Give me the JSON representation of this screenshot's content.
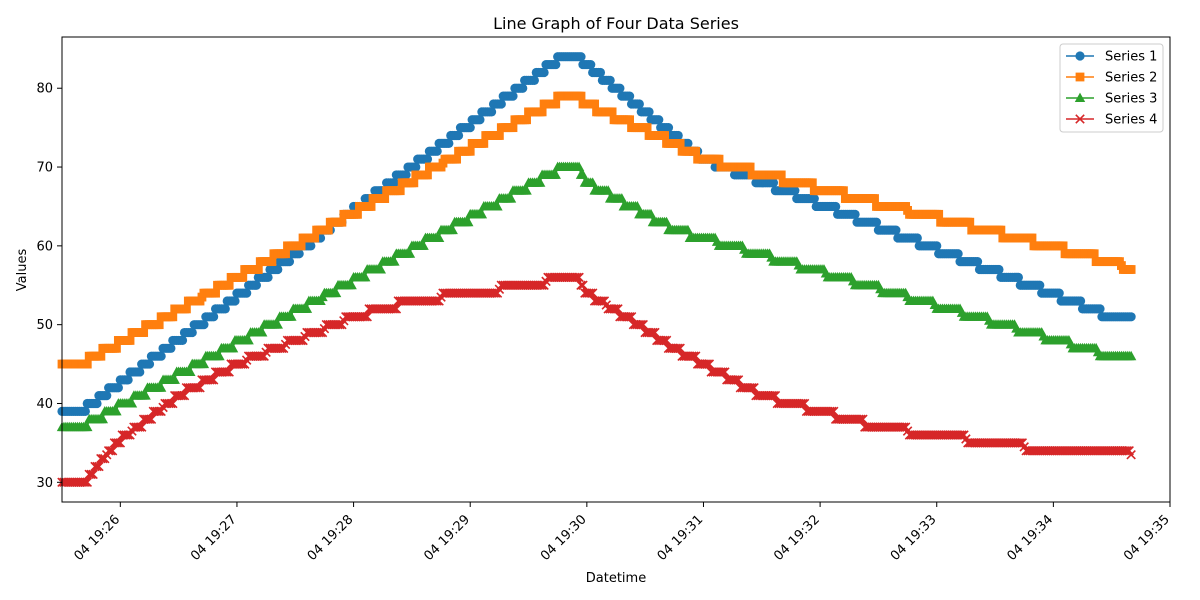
{
  "chart_data": {
    "type": "line",
    "title": "Line Graph of Four Data Series",
    "xlabel": "Datetime",
    "ylabel": "Values",
    "x_range": [
      "19:25:30",
      "19:35:00"
    ],
    "ylim": [
      27.5,
      86.5
    ],
    "x_ticks": [
      "04 19:26",
      "04 19:27",
      "04 19:28",
      "04 19:29",
      "04 19:30",
      "04 19:31",
      "04 19:32",
      "04 19:33",
      "04 19:34",
      "04 19:35"
    ],
    "y_ticks": [
      30,
      40,
      50,
      60,
      70,
      80
    ],
    "grid": false,
    "legend_position": "top-right",
    "time_start": "19:25:30",
    "time_end": "19:34:40",
    "peak_time": "19:29:55",
    "series": [
      {
        "name": "Series 1",
        "marker": "circle",
        "color": "#1f77b4",
        "keypoints": [
          [
            "19:25:30",
            39
          ],
          [
            "19:25:40",
            39
          ],
          [
            "19:29:47",
            84
          ],
          [
            "19:29:55",
            84
          ],
          [
            "19:30:00",
            83
          ],
          [
            "19:30:45",
            74
          ],
          [
            "19:31:00",
            71
          ],
          [
            "19:34:30",
            51
          ],
          [
            "19:34:40",
            51
          ]
        ]
      },
      {
        "name": "Series 2",
        "marker": "square",
        "color": "#ff7f0e",
        "keypoints": [
          [
            "19:25:30",
            45
          ],
          [
            "19:25:40",
            45
          ],
          [
            "19:29:48",
            79
          ],
          [
            "19:29:55",
            79
          ],
          [
            "19:30:00",
            78
          ],
          [
            "19:30:45",
            73
          ],
          [
            "19:31:00",
            71
          ],
          [
            "19:34:30",
            58
          ],
          [
            "19:34:40",
            57
          ]
        ]
      },
      {
        "name": "Series 3",
        "marker": "triangle",
        "color": "#2ca02c",
        "keypoints": [
          [
            "19:25:30",
            37
          ],
          [
            "19:25:40",
            37
          ],
          [
            "19:29:48",
            70
          ],
          [
            "19:29:55",
            70
          ],
          [
            "19:30:00",
            68
          ],
          [
            "19:30:45",
            62
          ],
          [
            "19:31:00",
            61
          ],
          [
            "19:34:30",
            46
          ],
          [
            "19:34:40",
            46
          ]
        ]
      },
      {
        "name": "Series 4",
        "marker": "x",
        "color": "#d62728",
        "keypoints": [
          [
            "19:25:30",
            30
          ],
          [
            "19:25:42",
            30
          ],
          [
            "19:25:48",
            32
          ],
          [
            "19:25:58",
            35
          ],
          [
            "19:26:30",
            41
          ],
          [
            "19:27:00",
            45
          ],
          [
            "19:27:30",
            48
          ],
          [
            "19:28:00",
            51
          ],
          [
            "19:28:30",
            53
          ],
          [
            "19:29:00",
            54
          ],
          [
            "19:29:30",
            55
          ],
          [
            "19:29:48",
            56
          ],
          [
            "19:29:55",
            56
          ],
          [
            "19:30:00",
            54
          ],
          [
            "19:30:20",
            51
          ],
          [
            "19:30:45",
            47
          ],
          [
            "19:31:00",
            45
          ],
          [
            "19:31:30",
            41
          ],
          [
            "19:32:00",
            39
          ],
          [
            "19:32:30",
            37
          ],
          [
            "19:33:00",
            36
          ],
          [
            "19:33:30",
            35
          ],
          [
            "19:34:00",
            34
          ],
          [
            "19:34:30",
            34
          ],
          [
            "19:34:40",
            33.5
          ]
        ]
      }
    ]
  }
}
